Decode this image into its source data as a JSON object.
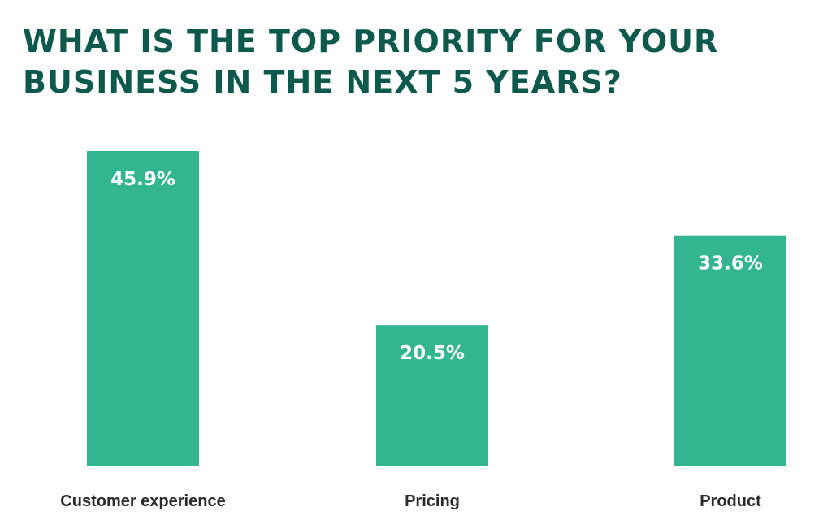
{
  "chart_data": {
    "type": "bar",
    "title_lines": [
      "WHAT IS THE TOP PRIORITY FOR YOUR",
      "BUSINESS IN THE NEXT 5 YEARS?"
    ],
    "categories": [
      "Customer experience",
      "Pricing",
      "Product"
    ],
    "values": [
      45.9,
      20.5,
      33.6
    ],
    "value_labels": [
      "45.9%",
      "20.5%",
      "33.6%"
    ],
    "xlabel": "",
    "ylabel": "",
    "ylim": [
      0,
      45.9
    ],
    "grid": false,
    "legend": "none",
    "bar_color": "#33b592",
    "title_color": "#0d5a4c"
  }
}
